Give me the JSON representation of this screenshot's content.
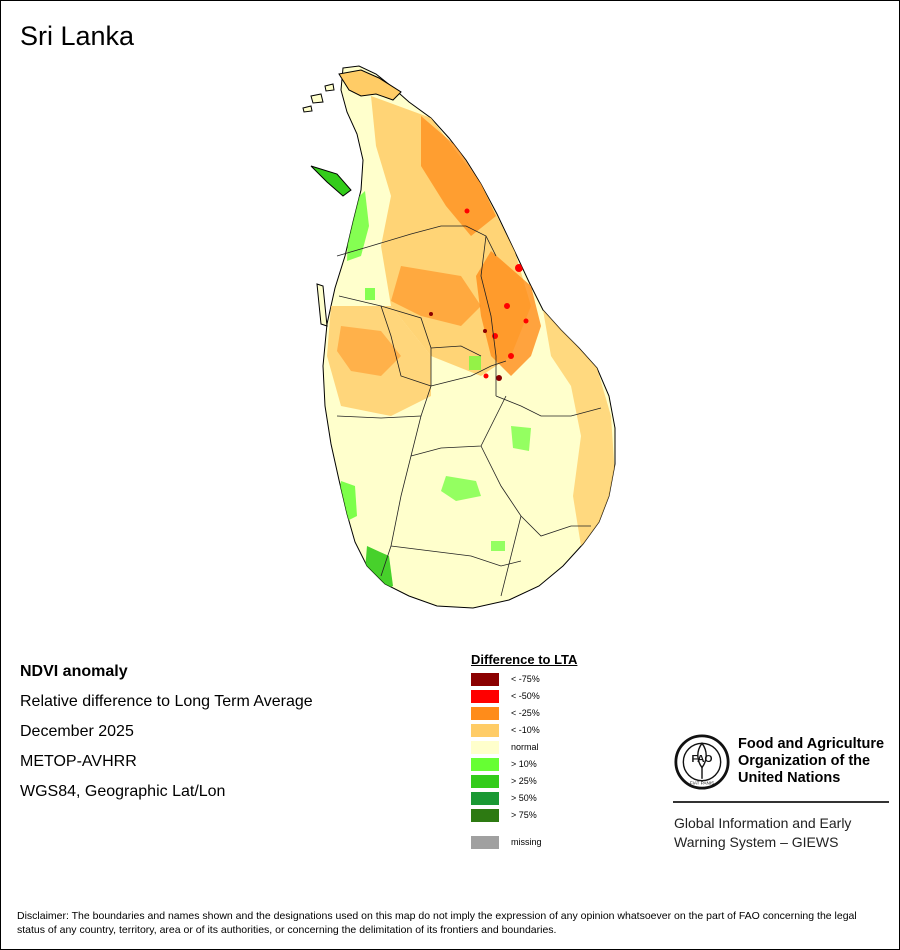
{
  "title": "Sri Lanka",
  "info": {
    "product": "NDVI anomaly",
    "description": "Relative difference to Long Term Average",
    "period": "December 2025",
    "sensor": "METOP-AVHRR",
    "projection": "WGS84, Geographic Lat/Lon"
  },
  "legend": {
    "title": "Difference to LTA",
    "classes": [
      {
        "label": "< -75%",
        "color": "#8b0000"
      },
      {
        "label": "< -50%",
        "color": "#ff0000"
      },
      {
        "label": "< -25%",
        "color": "#ff8c1a"
      },
      {
        "label": "< -10%",
        "color": "#ffcc66"
      },
      {
        "label": "normal",
        "color": "#ffffcc"
      },
      {
        "label": "> 10%",
        "color": "#66ff33"
      },
      {
        "label": "> 25%",
        "color": "#33cc1a"
      },
      {
        "label": "> 50%",
        "color": "#1a9933"
      },
      {
        "label": "> 75%",
        "color": "#2d7a12"
      }
    ],
    "missing": {
      "label": "missing",
      "color": "#a0a0a0"
    }
  },
  "org": {
    "name_lines": [
      "Food and Agriculture",
      "Organization of the",
      "United Nations"
    ],
    "logo_letters": "FAO",
    "logo_motto": "FIAT PANIS",
    "giews_lines": [
      "Global Information and Early",
      "Warning System – GIEWS"
    ]
  },
  "disclaimer": "Disclaimer: The boundaries and names shown and the designations used on this map do not imply the expression of any opinion whatsoever on the part of FAO concerning the legal status of any country, territory, area or of its authorities, or concerning the delimitation of its frontiers and boundaries."
}
